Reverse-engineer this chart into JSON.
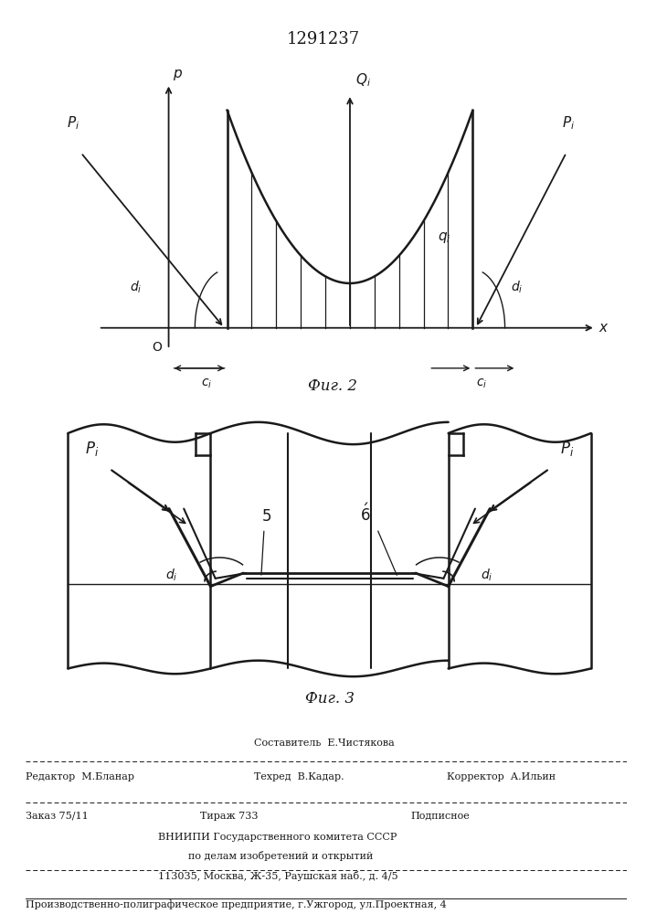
{
  "title": "1291237",
  "fig2_caption": "Фиг. 2",
  "fig3_caption": "Фиг. 3",
  "line_color": "#1a1a1a"
}
